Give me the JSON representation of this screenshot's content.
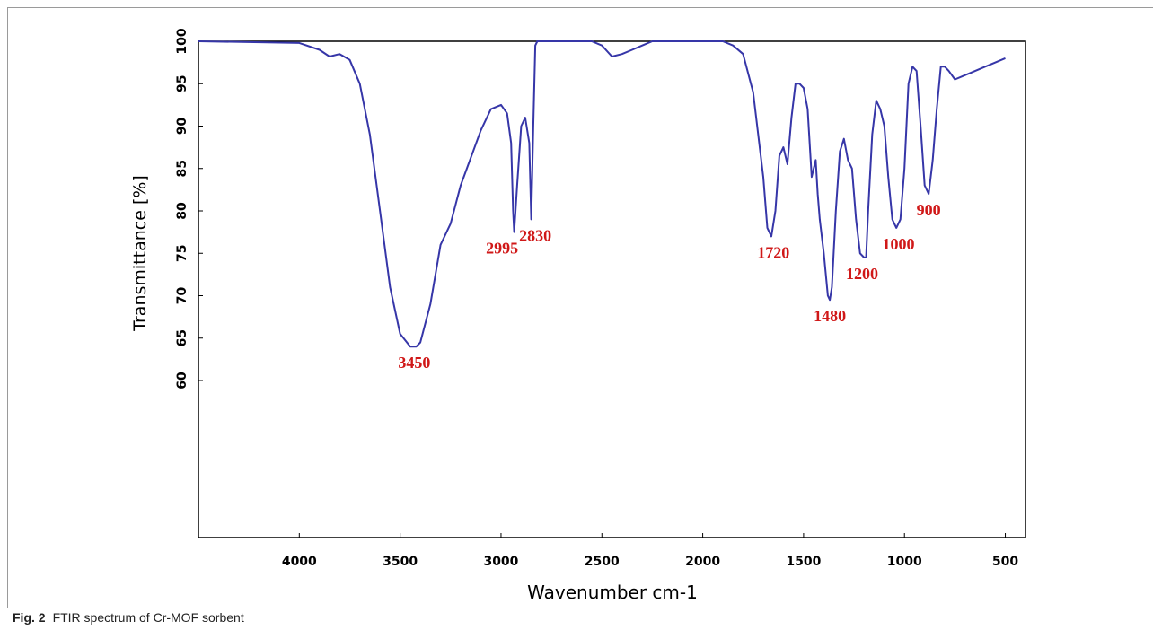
{
  "figure": {
    "label": "Fig. 2",
    "caption": "FTIR spectrum of Cr-MOF sorbent"
  },
  "colors": {
    "spectrum": "#3636a8",
    "annotation": "#d01818",
    "axis": "#000000"
  },
  "chart_data": {
    "type": "line",
    "title": "",
    "xlabel": "Wavenumber cm-1",
    "ylabel": "Transmittance [%]",
    "xlim": [
      4500,
      400
    ],
    "ylim": [
      0,
      100
    ],
    "x_reversed": true,
    "grid": false,
    "xticks": [
      4000,
      3500,
      3000,
      2500,
      2000,
      1500,
      1000,
      500
    ],
    "yticks": [
      60,
      65,
      70,
      75,
      80,
      85,
      90,
      95,
      100
    ],
    "series": [
      {
        "x": [
          4500,
          4000,
          3900,
          3850,
          3800,
          3750,
          3700,
          3650,
          3600,
          3550,
          3500,
          3450,
          3420,
          3400,
          3350,
          3300,
          3250,
          3200,
          3100,
          3050,
          3000,
          2970,
          2950,
          2940,
          2935,
          2920,
          2900,
          2880,
          2860,
          2850,
          2840,
          2830,
          2820,
          2800,
          2700,
          2550,
          2500,
          2450,
          2400,
          2350,
          2300,
          2250,
          2200,
          2000,
          1900,
          1850,
          1800,
          1750,
          1700,
          1680,
          1660,
          1640,
          1620,
          1600,
          1580,
          1560,
          1540,
          1520,
          1500,
          1480,
          1460,
          1440,
          1430,
          1420,
          1400,
          1380,
          1370,
          1360,
          1340,
          1320,
          1300,
          1280,
          1260,
          1240,
          1220,
          1200,
          1190,
          1180,
          1160,
          1140,
          1120,
          1100,
          1080,
          1060,
          1040,
          1020,
          1000,
          980,
          960,
          940,
          920,
          900,
          880,
          860,
          840,
          820,
          800,
          780,
          750,
          700,
          600,
          500
        ],
        "y": [
          100,
          99.8,
          99,
          98.2,
          98.5,
          97.8,
          95,
          89,
          80,
          71,
          65.5,
          64,
          64,
          64.5,
          69,
          76,
          78.5,
          83,
          89.5,
          92,
          92.5,
          91.5,
          88,
          80,
          77.5,
          83,
          90,
          91,
          88,
          79,
          90,
          99.5,
          100,
          100,
          100,
          100,
          99.5,
          98.2,
          98.5,
          99,
          99.5,
          100,
          100,
          100,
          100,
          99.5,
          98.5,
          94,
          84,
          78,
          77,
          80,
          86.5,
          87.5,
          85.5,
          91,
          95,
          95,
          94.5,
          92,
          84,
          86,
          82,
          79,
          75,
          70,
          69.5,
          71,
          80,
          87,
          88.5,
          86,
          85,
          79,
          75,
          74.5,
          74.5,
          80,
          89,
          93,
          92,
          90,
          84,
          79,
          78,
          79,
          85,
          95,
          97,
          96.5,
          90,
          83,
          82,
          86,
          92,
          97,
          97,
          96.5,
          95.5,
          96,
          97,
          98
        ]
      }
    ],
    "annotations": [
      {
        "text": "3450",
        "x": 3430,
        "y": 64
      },
      {
        "text": "2995",
        "x": 2995,
        "y": 77.5
      },
      {
        "text": "2830",
        "x": 2830,
        "y": 79
      },
      {
        "text": "1720",
        "x": 1650,
        "y": 77
      },
      {
        "text": "1480",
        "x": 1370,
        "y": 69.5
      },
      {
        "text": "1200",
        "x": 1210,
        "y": 74.5
      },
      {
        "text": "1000",
        "x": 1030,
        "y": 78
      },
      {
        "text": "900",
        "x": 880,
        "y": 82
      }
    ]
  }
}
